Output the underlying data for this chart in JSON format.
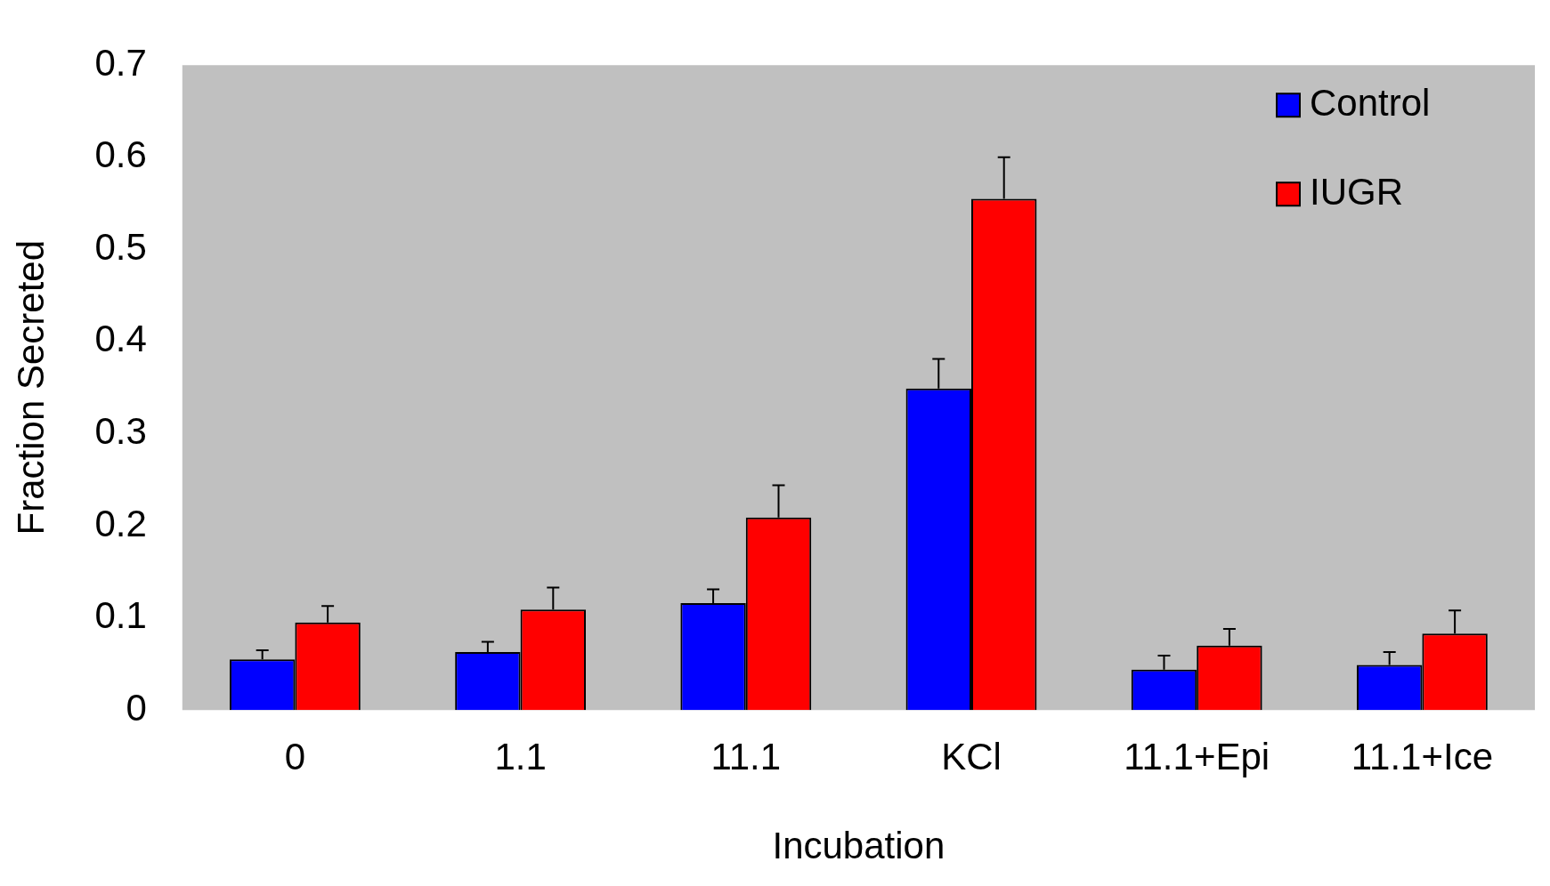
{
  "chart_data": {
    "type": "bar",
    "xlabel": "Incubation",
    "ylabel": "Fraction Secreted",
    "categories": [
      "0",
      "1.1",
      "11.1",
      "KCl",
      "11.1+Epi",
      "11.1+Ice"
    ],
    "series": [
      {
        "name": "Control",
        "color": "#0000ff",
        "values": [
          0.055,
          0.063,
          0.116,
          0.349,
          0.044,
          0.049
        ],
        "errors": [
          [
            0.055,
            0.065
          ],
          [
            0.063,
            0.074
          ],
          [
            0.116,
            0.131
          ],
          [
            0.349,
            0.381
          ],
          [
            0.044,
            0.059
          ],
          [
            0.049,
            0.063
          ]
        ]
      },
      {
        "name": "IUGR",
        "color": "#ff0000",
        "values": [
          0.095,
          0.109,
          0.209,
          0.555,
          0.07,
          0.083
        ],
        "errors": [
          [
            0.095,
            0.113
          ],
          [
            0.109,
            0.133
          ],
          [
            0.209,
            0.244
          ],
          [
            0.555,
            0.6
          ],
          [
            0.07,
            0.088
          ],
          [
            0.083,
            0.108
          ]
        ]
      }
    ],
    "ylim": [
      0,
      0.7
    ],
    "yticks": [
      0,
      0.1,
      0.2,
      0.3,
      0.4,
      0.5,
      0.6,
      0.7
    ],
    "grid": false,
    "legend": "top right"
  }
}
